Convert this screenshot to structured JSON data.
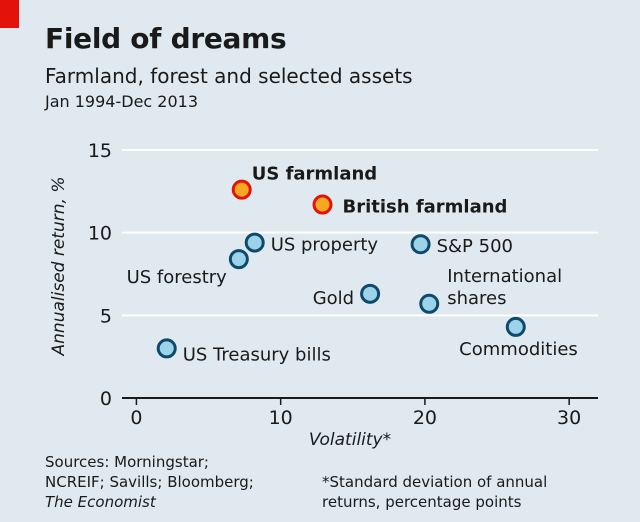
{
  "header": {
    "title": "Field of dreams",
    "subtitle": "Farmland, forest and selected assets",
    "period": "Jan 1994-Dec 2013"
  },
  "colors": {
    "background": "#dfe9ef",
    "gridline": "#ffffff",
    "highlight_fill": "#f5a623",
    "highlight_stroke": "#e3120b",
    "point_fill": "#9dd3e8",
    "point_stroke": "#0e4a6e",
    "red_tag": "#e3120b"
  },
  "chart_data": {
    "type": "scatter",
    "xlabel": "Volatility*",
    "ylabel": "Annualised return, %",
    "xlim": [
      -1,
      32
    ],
    "ylim": [
      0,
      15
    ],
    "xticks": [
      0,
      10,
      20,
      30
    ],
    "yticks": [
      0,
      5,
      10,
      15
    ],
    "grid": "horizontal",
    "points": [
      {
        "label": "US farmland",
        "x": 7.3,
        "y": 12.6,
        "highlight": true
      },
      {
        "label": "British farmland",
        "x": 12.9,
        "y": 11.7,
        "highlight": true
      },
      {
        "label": "US property",
        "x": 8.2,
        "y": 9.4,
        "highlight": false
      },
      {
        "label": "US forestry",
        "x": 7.1,
        "y": 8.4,
        "highlight": false
      },
      {
        "label": "S&P 500",
        "x": 19.7,
        "y": 9.3,
        "highlight": false
      },
      {
        "label": "Gold",
        "x": 16.2,
        "y": 6.3,
        "highlight": false
      },
      {
        "label": "International shares",
        "x": 20.3,
        "y": 5.7,
        "highlight": false
      },
      {
        "label": "Commodities",
        "x": 26.3,
        "y": 4.3,
        "highlight": false
      },
      {
        "label": "US Treasury bills",
        "x": 2.1,
        "y": 3.0,
        "highlight": false
      }
    ]
  },
  "footer": {
    "sources_line1": "Sources: Morningstar;",
    "sources_line2": "NCREIF; Savills; Bloomberg;",
    "sources_line3": "The Economist",
    "note_line1": "*Standard deviation of annual",
    "note_line2": "returns, percentage points"
  }
}
